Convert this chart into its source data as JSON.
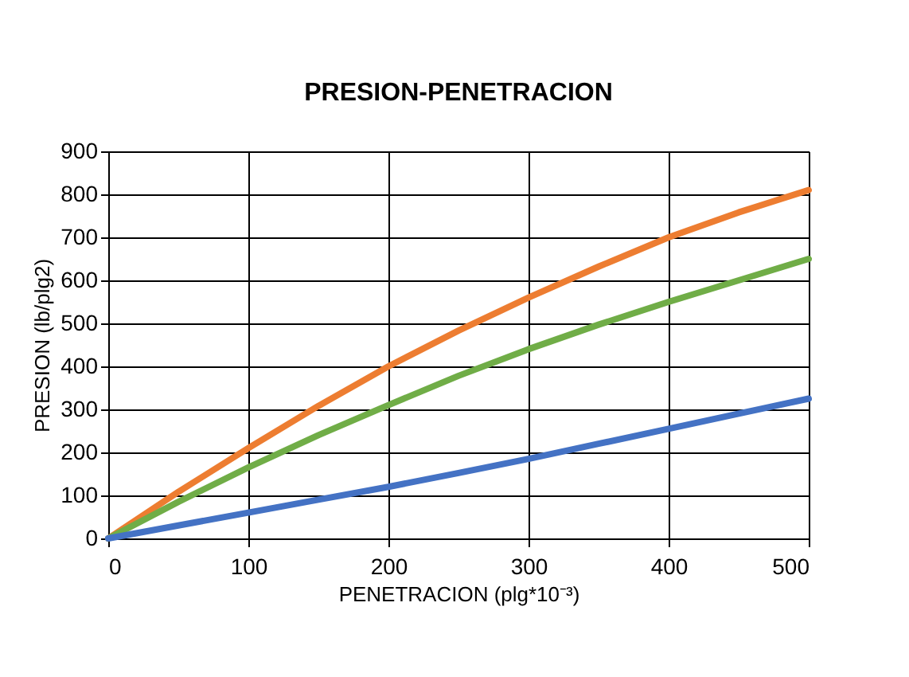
{
  "chart_data": {
    "type": "line",
    "title": "PRESION-PENETRACION",
    "xlabel": "PENETRACION  (plg*10⁻³)",
    "ylabel": "PRESION  (lb/plg2)",
    "x": [
      0,
      50,
      100,
      150,
      200,
      250,
      300,
      350,
      400,
      450,
      500
    ],
    "series": [
      {
        "color": "#ed7d31",
        "values": [
          0,
          108,
          210,
          308,
          400,
          483,
          560,
          632,
          700,
          758,
          810
        ]
      },
      {
        "color": "#70ad47",
        "values": [
          0,
          85,
          165,
          240,
          310,
          378,
          440,
          497,
          550,
          600,
          650
        ]
      },
      {
        "color": "#4472c4",
        "values": [
          0,
          30,
          60,
          90,
          120,
          152,
          185,
          220,
          255,
          290,
          325
        ]
      }
    ],
    "xlim": [
      0,
      500
    ],
    "xticks": [
      0,
      100,
      200,
      300,
      400,
      500
    ],
    "ylim": [
      0,
      900
    ],
    "yticks": [
      0,
      100,
      200,
      300,
      400,
      500,
      600,
      700,
      800,
      900
    ],
    "grid": true,
    "marker": "none",
    "line_style": "solid"
  }
}
